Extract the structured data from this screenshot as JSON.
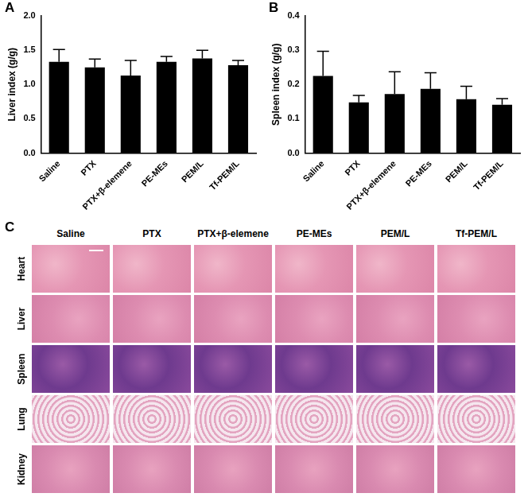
{
  "chart_data": [
    {
      "type": "bar",
      "panel": "A",
      "y_label": "Liver index (g/g)",
      "categories": [
        "Saline",
        "PTX",
        "PTX+β-elemene",
        "PE-MEs",
        "PEM/L",
        "Tf-PEM/L"
      ],
      "values": [
        1.33,
        1.25,
        1.13,
        1.33,
        1.38,
        1.28
      ],
      "errors": [
        0.18,
        0.12,
        0.22,
        0.08,
        0.12,
        0.07
      ],
      "color": "#000000",
      "ylim": [
        0,
        2.0
      ],
      "yticks": [
        {
          "value": 0,
          "label": "0.0"
        },
        {
          "value": 0.5,
          "label": "0.5"
        },
        {
          "value": 1.0,
          "label": "1.0"
        },
        {
          "value": 1.5,
          "label": "1.5"
        },
        {
          "value": 2.0,
          "label": "2.0"
        }
      ],
      "grid": false
    },
    {
      "type": "bar",
      "panel": "B",
      "y_label": "Spleen index (g/g)",
      "categories": [
        "Saline",
        "PTX",
        "PTX+β-elemene",
        "PE-MEs",
        "PEM/L",
        "Tf-PEM/L"
      ],
      "values": [
        0.225,
        0.148,
        0.172,
        0.187,
        0.157,
        0.141
      ],
      "errors": [
        0.072,
        0.02,
        0.065,
        0.047,
        0.038,
        0.018
      ],
      "color": "#000000",
      "ylim": [
        0,
        0.4
      ],
      "yticks": [
        {
          "value": 0,
          "label": "0.0"
        },
        {
          "value": 0.1,
          "label": "0.1"
        },
        {
          "value": 0.2,
          "label": "0.2"
        },
        {
          "value": 0.3,
          "label": "0.3"
        },
        {
          "value": 0.4,
          "label": "0.4"
        }
      ],
      "grid": false
    }
  ],
  "panel_c": {
    "panel": "C",
    "columns": [
      "Saline",
      "PTX",
      "PTX+β-elemene",
      "PE-MEs",
      "PEM/L",
      "Tf-PEM/L"
    ],
    "rows": [
      "Heart",
      "Liver",
      "Spleen",
      "Lung",
      "Kidney"
    ]
  }
}
